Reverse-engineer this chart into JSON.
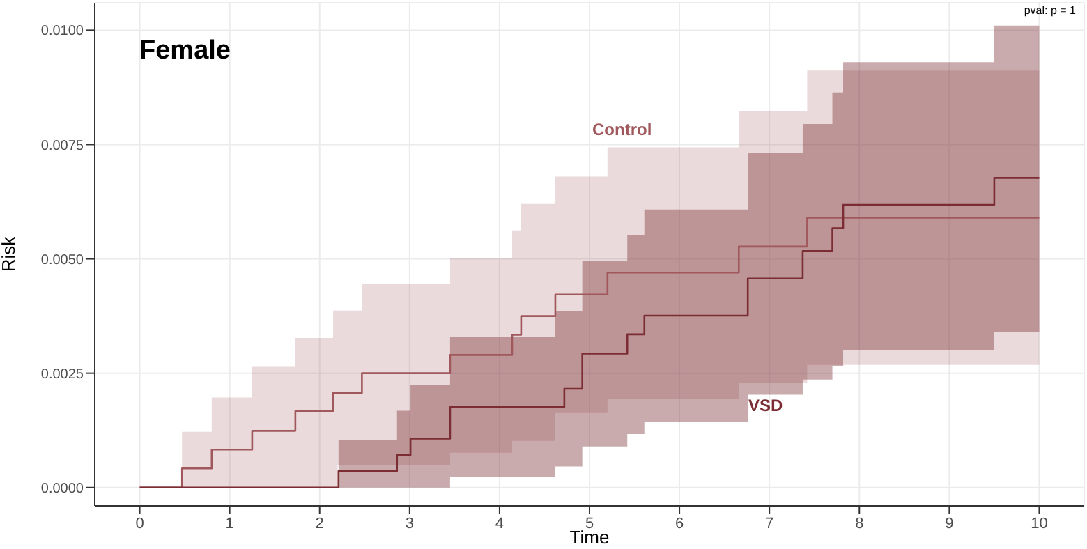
{
  "chart_data": {
    "type": "step",
    "xlabel": "Time",
    "ylabel": "Risk",
    "annotations": [
      "Female",
      "pval: p = 1"
    ],
    "xlim": [
      -0.5,
      10.5
    ],
    "xticks": [
      0,
      1,
      2,
      3,
      4,
      5,
      6,
      7,
      8,
      9,
      10
    ],
    "ylim": [
      -0.0004,
      0.0106
    ],
    "yticks": [
      {
        "value": 0,
        "label": "0.0000"
      },
      {
        "value": 0.0025,
        "label": "0.0025"
      },
      {
        "value": 0.005,
        "label": "0.0050"
      },
      {
        "value": 0.0075,
        "label": "0.0075"
      },
      {
        "value": 0.01,
        "label": "0.0100"
      }
    ],
    "grid": true,
    "marker": "none",
    "line_style": "solid",
    "series": [
      {
        "name": "Control",
        "color": "#a0585c",
        "x": [
          0,
          0.47,
          0.8,
          1.25,
          1.73,
          2.15,
          2.2,
          2.47,
          3.45,
          4.14,
          4.24,
          4.62,
          4.95,
          5.2,
          6.66,
          7.42,
          7.82,
          10
        ],
        "values": [
          0,
          0.00042,
          0.00083,
          0.00124,
          0.00167,
          0.00207,
          0.00207,
          0.0025,
          0.0029,
          0.00334,
          0.00375,
          0.00422,
          0.00422,
          0.0047,
          0.00527,
          0.0059,
          0.0059,
          0.0059
        ],
        "lower": [
          0,
          0,
          0,
          0,
          0,
          0,
          0.0005,
          0.0005,
          0.00076,
          0.00102,
          0.00102,
          0.00163,
          0.00163,
          0.00193,
          0.00228,
          0.00268,
          0.00268,
          0.00268
        ],
        "upper": [
          0,
          0.00122,
          0.00197,
          0.00264,
          0.00327,
          0.00387,
          0.00387,
          0.00445,
          0.00502,
          0.00562,
          0.0062,
          0.0068,
          0.0068,
          0.00744,
          0.00824,
          0.00912,
          0.00912,
          0.00912
        ]
      },
      {
        "name": "VSD",
        "color": "#7b2d33",
        "x": [
          0,
          2.21,
          2.86,
          3.01,
          3.45,
          4.62,
          4.72,
          4.92,
          5.42,
          5.61,
          6.76,
          7.37,
          7.7,
          7.82,
          9.5,
          10
        ],
        "values": [
          0,
          0.00036,
          0.00071,
          0.00107,
          0.00176,
          0.00176,
          0.00216,
          0.00293,
          0.00335,
          0.00376,
          0.00457,
          0.00517,
          0.00567,
          0.00618,
          0.00677,
          0.00677
        ],
        "lower": [
          0,
          0,
          0,
          0,
          0.00023,
          0.00046,
          0.00046,
          0.0009,
          0.00117,
          0.00144,
          0.00203,
          0.00236,
          0.00266,
          0.003,
          0.0034,
          0.0034
        ],
        "upper": [
          0,
          0.00104,
          0.00168,
          0.00224,
          0.0033,
          0.00386,
          0.00386,
          0.00496,
          0.00552,
          0.00608,
          0.00732,
          0.00795,
          0.00864,
          0.0093,
          0.0101,
          0.0101
        ]
      }
    ]
  }
}
